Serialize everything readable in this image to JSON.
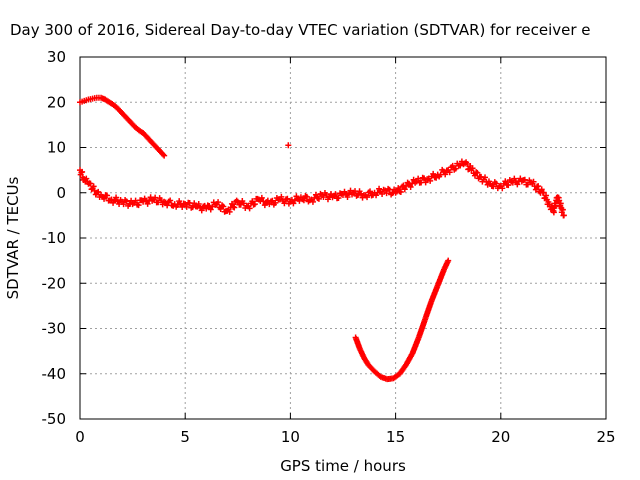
{
  "chart_data": {
    "type": "scatter",
    "title": "Day 300 of 2016, Sidereal Day-to-day VTEC variation (SDTVAR) for receiver e",
    "xlabel": "GPS time / hours",
    "ylabel": "SDTVAR / TECUs",
    "xlim": [
      0,
      25
    ],
    "ylim": [
      -50,
      30
    ],
    "xticks": [
      0,
      5,
      10,
      15,
      20,
      25
    ],
    "yticks": [
      -50,
      -40,
      -30,
      -20,
      -10,
      0,
      10,
      20,
      30
    ],
    "xtick_labels": [
      "0",
      "5",
      "10",
      "15",
      "20",
      "25"
    ],
    "ytick_labels": [
      "-50",
      "-40",
      "-30",
      "-20",
      "-10",
      "0",
      "10",
      "20",
      "30"
    ],
    "grid": true,
    "marker": "plus",
    "color": "#ff0000",
    "series": [
      {
        "name": "main-band",
        "x": [
          0.0,
          0.2,
          0.4,
          0.6,
          0.8,
          1.0,
          1.5,
          2.0,
          2.5,
          3.0,
          3.5,
          4.0,
          4.5,
          5.0,
          5.5,
          6.0,
          6.5,
          7.0,
          7.5,
          8.0,
          8.5,
          9.0,
          9.5,
          10.0,
          10.5,
          11.0,
          11.5,
          12.0,
          12.5,
          13.0,
          13.5,
          14.0,
          14.5,
          15.0,
          15.5,
          16.0,
          16.5,
          17.0,
          17.5,
          18.0,
          18.3,
          18.6,
          19.0,
          19.5,
          20.0,
          20.5,
          21.0,
          21.5,
          22.0,
          22.3,
          22.5,
          22.7,
          23.0
        ],
        "y": [
          5.0,
          3.0,
          2.0,
          1.0,
          0.0,
          -0.5,
          -1.5,
          -2.0,
          -2.5,
          -2.0,
          -1.5,
          -2.0,
          -2.5,
          -2.5,
          -3.0,
          -3.5,
          -2.5,
          -4.0,
          -2.0,
          -3.0,
          -1.5,
          -2.5,
          -1.5,
          -2.0,
          -1.0,
          -1.5,
          -0.5,
          -1.0,
          -0.5,
          0.0,
          -0.5,
          0.0,
          0.5,
          0.0,
          1.5,
          2.5,
          3.0,
          4.0,
          5.0,
          6.0,
          6.5,
          5.0,
          3.5,
          2.0,
          1.5,
          2.5,
          2.5,
          2.0,
          0.0,
          -2.5,
          -4.0,
          -1.0,
          -5.0
        ]
      },
      {
        "name": "early-high-arc",
        "x": [
          0.0,
          0.2,
          0.4,
          0.6,
          0.8,
          1.0,
          1.2,
          1.4,
          1.6,
          1.8,
          2.0,
          2.2,
          2.4,
          2.6,
          2.8,
          3.0,
          3.2,
          3.4,
          3.6,
          3.8,
          4.0
        ],
        "y": [
          20.0,
          20.3,
          20.6,
          20.8,
          21.0,
          21.0,
          20.6,
          20.0,
          19.4,
          18.6,
          17.6,
          16.6,
          15.6,
          14.6,
          13.8,
          13.2,
          12.2,
          11.2,
          10.2,
          9.2,
          8.2
        ]
      },
      {
        "name": "isolated-point",
        "x": [
          9.9
        ],
        "y": [
          10.5
        ]
      },
      {
        "name": "low-dip-arc",
        "x": [
          13.1,
          13.3,
          13.5,
          13.7,
          14.0,
          14.3,
          14.6,
          14.9,
          15.2,
          15.5,
          15.8,
          16.1,
          16.4,
          16.7,
          17.0,
          17.3,
          17.5
        ],
        "y": [
          -32.0,
          -34.5,
          -36.5,
          -38.0,
          -39.5,
          -40.7,
          -41.2,
          -41.0,
          -40.0,
          -38.0,
          -35.5,
          -32.0,
          -28.0,
          -24.0,
          -20.5,
          -17.0,
          -15.0
        ]
      }
    ]
  }
}
